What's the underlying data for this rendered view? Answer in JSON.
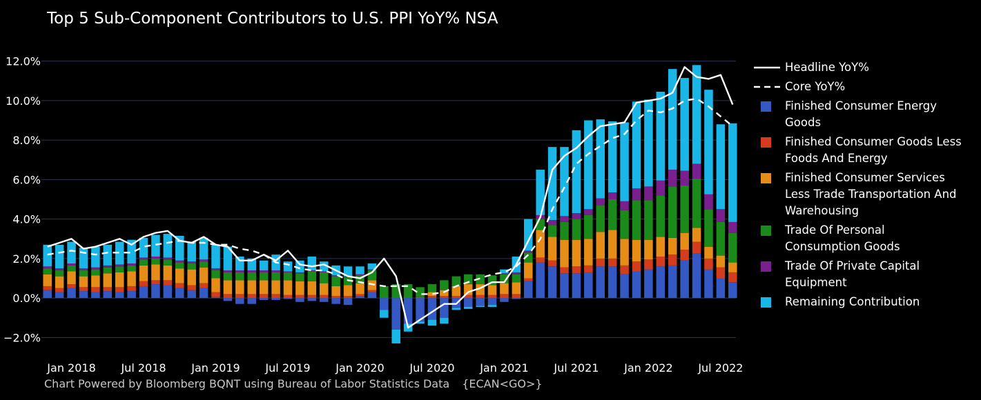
{
  "chart_data": {
    "type": "bar",
    "title": "Top 5 Sub-Component Contributors to U.S. PPI YoY% NSA",
    "xlabel": "",
    "ylabel": "",
    "ylim": [
      -3.0,
      13.0
    ],
    "y_ticks": [
      -2,
      0,
      2,
      4,
      6,
      8,
      10,
      12
    ],
    "y_tick_labels": [
      "−2.0%",
      "0.0%",
      "2.0%",
      "4.0%",
      "6.0%",
      "8.0%",
      "10.0%",
      "12.0%"
    ],
    "x_tick_labels": [
      {
        "label": "Jan 2018",
        "index": 2
      },
      {
        "label": "Jul 2018",
        "index": 8
      },
      {
        "label": "Jan 2019",
        "index": 14
      },
      {
        "label": "Jul 2019",
        "index": 20
      },
      {
        "label": "Jan 2020",
        "index": 26
      },
      {
        "label": "Jul 2020",
        "index": 32
      },
      {
        "label": "Jan 2021",
        "index": 38
      },
      {
        "label": "Jul 2021",
        "index": 44
      },
      {
        "label": "Jan 2022",
        "index": 50
      },
      {
        "label": "Jul 2022",
        "index": 56
      }
    ],
    "categories": [
      "Nov 2017",
      "Dec 2017",
      "Jan 2018",
      "Feb 2018",
      "Mar 2018",
      "Apr 2018",
      "May 2018",
      "Jun 2018",
      "Jul 2018",
      "Aug 2018",
      "Sep 2018",
      "Oct 2018",
      "Nov 2018",
      "Dec 2018",
      "Jan 2019",
      "Feb 2019",
      "Mar 2019",
      "Apr 2019",
      "May 2019",
      "Jun 2019",
      "Jul 2019",
      "Aug 2019",
      "Sep 2019",
      "Oct 2019",
      "Nov 2019",
      "Dec 2019",
      "Jan 2020",
      "Feb 2020",
      "Mar 2020",
      "Apr 2020",
      "May 2020",
      "Jun 2020",
      "Jul 2020",
      "Aug 2020",
      "Sep 2020",
      "Oct 2020",
      "Nov 2020",
      "Dec 2020",
      "Jan 2021",
      "Feb 2021",
      "Mar 2021",
      "Apr 2021",
      "May 2021",
      "Jun 2021",
      "Jul 2021",
      "Aug 2021",
      "Sep 2021",
      "Oct 2021",
      "Nov 2021",
      "Dec 2021",
      "Jan 2022",
      "Feb 2022",
      "Mar 2022",
      "Apr 2022",
      "May 2022",
      "Jun 2022",
      "Jul 2022",
      "Aug 2022"
    ],
    "series": [
      {
        "name": "Finished Consumer Energy Goods",
        "kind": "bar",
        "color": "#3458c4",
        "values": [
          0.4,
          0.3,
          0.5,
          0.35,
          0.3,
          0.35,
          0.3,
          0.35,
          0.6,
          0.7,
          0.65,
          0.5,
          0.4,
          0.5,
          0.05,
          -0.15,
          -0.3,
          -0.3,
          -0.1,
          -0.1,
          -0.05,
          -0.2,
          -0.15,
          -0.2,
          -0.3,
          -0.35,
          0.1,
          0.3,
          -0.6,
          -1.6,
          -1.3,
          -1.2,
          -1.1,
          -1.0,
          -0.5,
          -0.45,
          -0.4,
          -0.35,
          -0.2,
          -0.05,
          0.85,
          1.8,
          1.6,
          1.25,
          1.25,
          1.3,
          1.6,
          1.6,
          1.2,
          1.35,
          1.45,
          1.6,
          1.65,
          1.9,
          2.25,
          1.45,
          1.0,
          0.8
        ]
      },
      {
        "name": "Finished Consumer Goods Less Foods And Energy",
        "kind": "bar",
        "color": "#d43c1e",
        "values": [
          0.2,
          0.2,
          0.2,
          0.2,
          0.25,
          0.2,
          0.25,
          0.25,
          0.25,
          0.2,
          0.25,
          0.25,
          0.25,
          0.25,
          0.25,
          0.2,
          0.2,
          0.2,
          0.2,
          0.2,
          0.15,
          0.15,
          0.15,
          0.15,
          0.1,
          0.1,
          0.1,
          0.1,
          0.0,
          0.0,
          0.0,
          0.05,
          0.1,
          0.1,
          0.1,
          0.15,
          0.15,
          0.15,
          0.2,
          0.2,
          0.15,
          0.25,
          0.3,
          0.3,
          0.35,
          0.35,
          0.4,
          0.4,
          0.45,
          0.5,
          0.5,
          0.5,
          0.55,
          0.55,
          0.6,
          0.55,
          0.55,
          0.5
        ]
      },
      {
        "name": "Finished Consumer Services Less Trade Transportation And Warehousing",
        "kind": "bar",
        "color": "#e58d16",
        "values": [
          0.6,
          0.6,
          0.65,
          0.55,
          0.6,
          0.7,
          0.75,
          0.75,
          0.8,
          0.8,
          0.75,
          0.75,
          0.8,
          0.8,
          0.7,
          0.7,
          0.7,
          0.7,
          0.7,
          0.7,
          0.75,
          0.7,
          0.7,
          0.6,
          0.5,
          0.55,
          0.55,
          0.5,
          0.0,
          0.0,
          0.0,
          0.0,
          0.2,
          0.3,
          0.5,
          0.55,
          0.55,
          0.5,
          0.55,
          0.6,
          0.8,
          1.4,
          1.2,
          1.4,
          1.35,
          1.35,
          1.35,
          1.45,
          1.35,
          1.1,
          1.0,
          1.0,
          0.85,
          0.85,
          0.7,
          0.6,
          0.6,
          0.5
        ]
      },
      {
        "name": "Trade Of Personal Consumption Goods",
        "kind": "bar",
        "color": "#1a8a1a",
        "values": [
          0.3,
          0.3,
          0.3,
          0.3,
          0.3,
          0.3,
          0.3,
          0.3,
          0.3,
          0.3,
          0.3,
          0.3,
          0.3,
          0.3,
          0.4,
          0.4,
          0.4,
          0.4,
          0.4,
          0.4,
          0.4,
          0.4,
          0.5,
          0.55,
          0.5,
          0.4,
          0.4,
          0.5,
          0.6,
          0.7,
          0.7,
          0.5,
          0.4,
          0.5,
          0.5,
          0.5,
          0.5,
          0.5,
          0.45,
          0.4,
          0.5,
          0.55,
          0.6,
          0.9,
          1.05,
          1.2,
          1.35,
          1.55,
          1.45,
          2.0,
          2.0,
          2.1,
          2.6,
          2.4,
          2.5,
          1.9,
          1.7,
          1.5
        ]
      },
      {
        "name": "Trade Of Private Capital Equipment",
        "kind": "bar",
        "color": "#7a1f8e",
        "values": [
          0.1,
          0.1,
          0.1,
          0.1,
          0.1,
          0.1,
          0.1,
          0.1,
          0.1,
          0.1,
          0.1,
          0.1,
          0.1,
          0.1,
          0.1,
          0.1,
          0.1,
          0.1,
          0.1,
          0.1,
          0.05,
          0.05,
          0.05,
          0.05,
          0.05,
          0.05,
          0.05,
          0.05,
          0.0,
          0.0,
          0.0,
          0.0,
          0.0,
          0.0,
          0.0,
          0.0,
          0.0,
          0.0,
          0.05,
          0.1,
          0.1,
          0.2,
          0.25,
          0.3,
          0.3,
          0.3,
          0.35,
          0.35,
          0.45,
          0.6,
          0.7,
          0.75,
          0.85,
          0.75,
          0.75,
          0.75,
          0.65,
          0.55
        ]
      },
      {
        "name": "Remaining Contribution",
        "kind": "bar",
        "color": "#1ab6e8",
        "values": [
          1.1,
          1.2,
          1.1,
          1.05,
          1.05,
          1.05,
          1.15,
          1.2,
          1.0,
          1.1,
          1.2,
          1.25,
          1.0,
          1.1,
          1.2,
          1.2,
          0.7,
          0.6,
          0.5,
          0.8,
          0.5,
          0.6,
          0.7,
          0.5,
          0.5,
          0.5,
          0.4,
          0.3,
          -0.4,
          -0.7,
          -0.4,
          -0.1,
          -0.3,
          -0.3,
          -0.1,
          -0.1,
          -0.05,
          -0.1,
          0.2,
          0.8,
          1.6,
          2.3,
          3.7,
          3.5,
          4.2,
          4.5,
          4.0,
          3.6,
          4.0,
          4.4,
          4.4,
          4.5,
          5.1,
          4.7,
          5.0,
          5.3,
          4.3,
          5.0
        ]
      },
      {
        "name": "Headline YoY%",
        "kind": "line",
        "color": "#ffffff",
        "dash": "solid",
        "values": [
          2.6,
          2.8,
          3.0,
          2.5,
          2.6,
          2.8,
          3.0,
          2.7,
          3.1,
          3.3,
          3.4,
          2.9,
          2.8,
          3.1,
          2.7,
          2.6,
          1.9,
          1.9,
          2.2,
          1.9,
          2.4,
          1.7,
          1.6,
          1.7,
          1.4,
          1.1,
          1.0,
          1.3,
          2.0,
          1.1,
          -1.5,
          -1.1,
          -0.7,
          -0.3,
          -0.3,
          0.3,
          0.5,
          0.8,
          0.8,
          1.7,
          2.9,
          4.1,
          6.5,
          7.2,
          7.6,
          8.2,
          8.7,
          8.8,
          8.9,
          9.9,
          10.0,
          10.1,
          10.4,
          11.7,
          11.2,
          11.1,
          11.3,
          9.8
        ]
      },
      {
        "name": "Core YoY%",
        "kind": "line",
        "color": "#ffffff",
        "dash": "dashed",
        "values": [
          2.2,
          2.3,
          2.4,
          2.3,
          2.2,
          2.3,
          2.3,
          2.3,
          2.6,
          2.7,
          2.8,
          2.9,
          2.8,
          2.8,
          2.7,
          2.7,
          2.5,
          2.4,
          2.2,
          1.8,
          1.7,
          1.5,
          1.4,
          1.4,
          1.2,
          0.9,
          0.8,
          0.7,
          0.6,
          0.6,
          0.6,
          0.2,
          0.2,
          0.3,
          0.6,
          0.8,
          1.0,
          1.2,
          1.3,
          1.6,
          2.2,
          3.0,
          4.5,
          5.6,
          6.8,
          7.3,
          7.7,
          8.1,
          8.3,
          9.0,
          9.5,
          9.4,
          9.6,
          10.0,
          10.1,
          9.7,
          9.2,
          8.7
        ]
      }
    ],
    "legend_position": "right"
  },
  "legend": {
    "items": [
      {
        "label_lines": [
          "Headline YoY%"
        ],
        "type": "line-solid",
        "color": "#ffffff"
      },
      {
        "label_lines": [
          "Core YoY%"
        ],
        "type": "line-dashed",
        "color": "#ffffff"
      },
      {
        "label_lines": [
          "Finished Consumer Energy",
          "Goods"
        ],
        "type": "box",
        "color": "#3458c4"
      },
      {
        "label_lines": [
          "Finished Consumer Goods Less",
          "Foods And Energy"
        ],
        "type": "box",
        "color": "#d43c1e"
      },
      {
        "label_lines": [
          "Finished Consumer Services",
          "Less Trade Transportation And",
          "Warehousing"
        ],
        "type": "box",
        "color": "#e58d16"
      },
      {
        "label_lines": [
          "Trade Of Personal",
          "Consumption Goods"
        ],
        "type": "box",
        "color": "#1a8a1a"
      },
      {
        "label_lines": [
          "Trade Of Private Capital",
          "Equipment"
        ],
        "type": "box",
        "color": "#7a1f8e"
      },
      {
        "label_lines": [
          "Remaining Contribution"
        ],
        "type": "box",
        "color": "#1ab6e8"
      }
    ]
  },
  "footer": {
    "source_text": "Chart Powered by Bloomberg BQNT using Bureau of Labor Statistics Data",
    "ticker_text": "{ECAN<GO>}"
  },
  "colors": {
    "background": "#000000",
    "gridline": "#2e3456",
    "axis_text": "#ffffff",
    "footer_text": "#c7c7c7"
  }
}
